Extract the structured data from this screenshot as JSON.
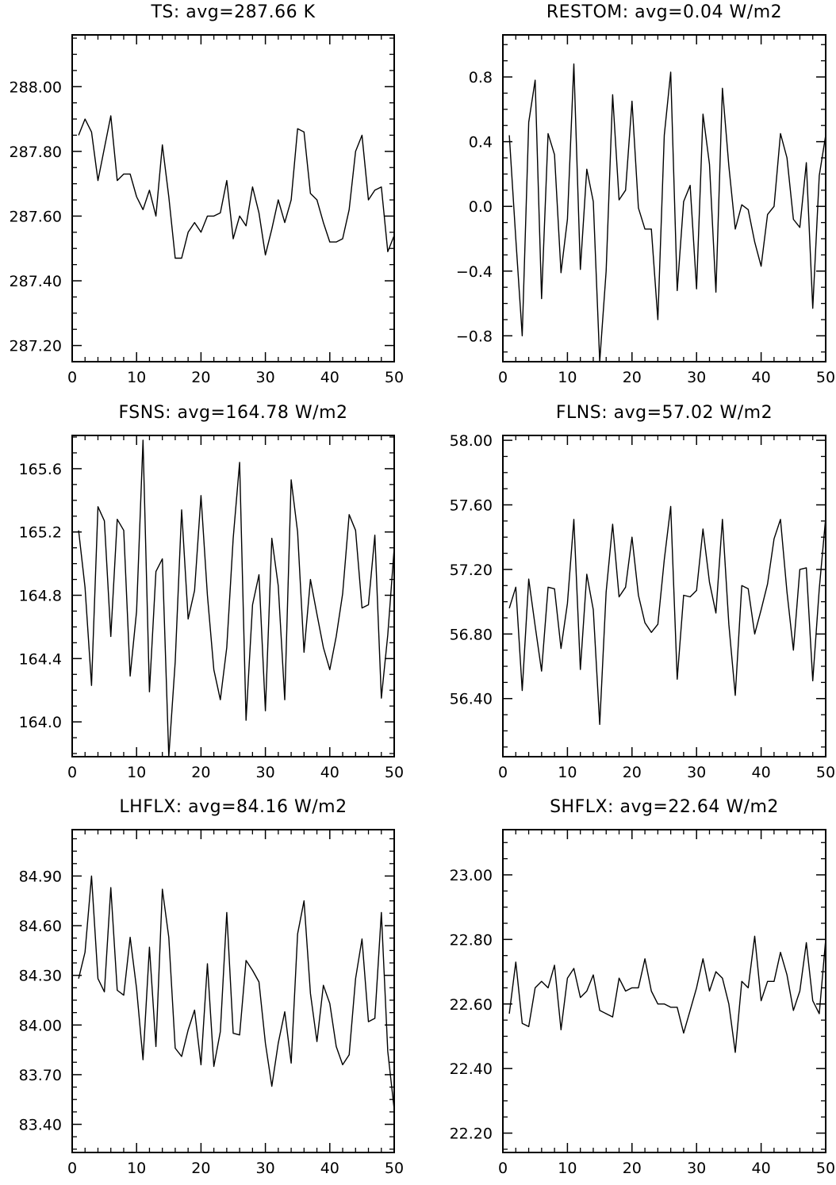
{
  "chart_data": [
    {
      "type": "line",
      "title": "TS: avg=287.66 K",
      "xlabel": "",
      "ylabel": "",
      "xlim": [
        0,
        50
      ],
      "ylim": [
        287.15,
        288.16
      ],
      "xticks": [
        0,
        10,
        20,
        30,
        40,
        50
      ],
      "xtick_labels": [
        "0",
        "10",
        "20",
        "30",
        "40",
        "50"
      ],
      "yticks": [
        287.2,
        287.4,
        287.6,
        287.8,
        288.0
      ],
      "ytick_labels": [
        "287.20",
        "287.40",
        "287.60",
        "287.80",
        "288.00"
      ],
      "x": [
        1,
        2,
        3,
        4,
        5,
        6,
        7,
        8,
        9,
        10,
        11,
        12,
        13,
        14,
        15,
        16,
        17,
        18,
        19,
        20,
        21,
        22,
        23,
        24,
        25,
        26,
        27,
        28,
        29,
        30,
        31,
        32,
        33,
        34,
        35,
        36,
        37,
        38,
        39,
        40,
        41,
        42,
        43,
        44,
        45,
        46,
        47,
        48,
        49,
        50
      ],
      "values": [
        287.85,
        287.9,
        287.86,
        287.71,
        287.81,
        287.91,
        287.71,
        287.73,
        287.73,
        287.66,
        287.62,
        287.68,
        287.6,
        287.82,
        287.66,
        287.47,
        287.47,
        287.55,
        287.58,
        287.55,
        287.6,
        287.6,
        287.61,
        287.71,
        287.53,
        287.6,
        287.57,
        287.69,
        287.61,
        287.48,
        287.56,
        287.65,
        287.58,
        287.65,
        287.87,
        287.86,
        287.67,
        287.65,
        287.58,
        287.52,
        287.52,
        287.53,
        287.62,
        287.8,
        287.85,
        287.65,
        287.68,
        287.69,
        287.49,
        287.54
      ]
    },
    {
      "type": "line",
      "title": "RESTOM: avg=0.04 W/m2",
      "xlabel": "",
      "ylabel": "",
      "xlim": [
        0,
        50
      ],
      "ylim": [
        -0.96,
        1.06
      ],
      "xticks": [
        0,
        10,
        20,
        30,
        40,
        50
      ],
      "xtick_labels": [
        "0",
        "10",
        "20",
        "30",
        "40",
        "50"
      ],
      "yticks": [
        -0.8,
        -0.4,
        0.0,
        0.4,
        0.8
      ],
      "ytick_labels": [
        "−0.8",
        "−0.4",
        "0.0",
        "0.4",
        "0.8"
      ],
      "x": [
        1,
        2,
        3,
        4,
        5,
        6,
        7,
        8,
        9,
        10,
        11,
        12,
        13,
        14,
        15,
        16,
        17,
        18,
        19,
        20,
        21,
        22,
        23,
        24,
        25,
        26,
        27,
        28,
        29,
        30,
        31,
        32,
        33,
        34,
        35,
        36,
        37,
        38,
        39,
        40,
        41,
        42,
        43,
        44,
        45,
        46,
        47,
        48,
        49,
        50
      ],
      "values": [
        0.44,
        -0.2,
        -0.8,
        0.52,
        0.78,
        -0.57,
        0.45,
        0.32,
        -0.41,
        -0.08,
        0.88,
        -0.39,
        0.23,
        0.03,
        -0.96,
        -0.4,
        0.69,
        0.04,
        0.1,
        0.65,
        -0.01,
        -0.14,
        -0.14,
        -0.7,
        0.44,
        0.83,
        -0.52,
        0.03,
        0.13,
        -0.51,
        0.57,
        0.26,
        -0.53,
        0.73,
        0.25,
        -0.14,
        0.01,
        -0.02,
        -0.22,
        -0.37,
        -0.05,
        0.0,
        0.45,
        0.3,
        -0.08,
        -0.13,
        0.27,
        -0.63,
        0.19,
        0.44
      ]
    },
    {
      "type": "line",
      "title": "FSNS: avg=164.78 W/m2",
      "xlabel": "",
      "ylabel": "",
      "xlim": [
        0,
        50
      ],
      "ylim": [
        163.78,
        165.81
      ],
      "xticks": [
        0,
        10,
        20,
        30,
        40,
        50
      ],
      "xtick_labels": [
        "0",
        "10",
        "20",
        "30",
        "40",
        "50"
      ],
      "yticks": [
        164.0,
        164.4,
        164.8,
        165.2,
        165.6
      ],
      "ytick_labels": [
        "164.0",
        "164.4",
        "164.8",
        "165.2",
        "165.6"
      ],
      "x": [
        1,
        2,
        3,
        4,
        5,
        6,
        7,
        8,
        9,
        10,
        11,
        12,
        13,
        14,
        15,
        16,
        17,
        18,
        19,
        20,
        21,
        22,
        23,
        24,
        25,
        26,
        27,
        28,
        29,
        30,
        31,
        32,
        33,
        34,
        35,
        36,
        37,
        38,
        39,
        40,
        41,
        42,
        43,
        44,
        45,
        46,
        47,
        48,
        49,
        50
      ],
      "values": [
        165.21,
        164.85,
        164.23,
        165.36,
        165.27,
        164.54,
        165.28,
        165.21,
        164.29,
        164.7,
        165.78,
        164.19,
        164.95,
        165.03,
        163.78,
        164.38,
        165.34,
        164.65,
        164.83,
        165.43,
        164.8,
        164.33,
        164.14,
        164.47,
        165.16,
        165.64,
        164.01,
        164.74,
        164.93,
        164.07,
        165.16,
        164.86,
        164.14,
        165.53,
        165.2,
        164.44,
        164.9,
        164.68,
        164.47,
        164.33,
        164.54,
        164.81,
        165.31,
        165.21,
        164.72,
        164.74,
        165.18,
        164.15,
        164.55,
        165.1
      ]
    },
    {
      "type": "line",
      "title": "FLNS: avg=57.02 W/m2",
      "xlabel": "",
      "ylabel": "",
      "xlim": [
        0,
        50
      ],
      "ylim": [
        56.04,
        58.03
      ],
      "xticks": [
        0,
        10,
        20,
        30,
        40,
        50
      ],
      "xtick_labels": [
        "0",
        "10",
        "20",
        "30",
        "40",
        "50"
      ],
      "yticks": [
        56.4,
        56.8,
        57.2,
        57.6,
        58.0
      ],
      "ytick_labels": [
        "56.40",
        "56.80",
        "57.20",
        "57.60",
        "58.00"
      ],
      "x": [
        1,
        2,
        3,
        4,
        5,
        6,
        7,
        8,
        9,
        10,
        11,
        12,
        13,
        14,
        15,
        16,
        17,
        18,
        19,
        20,
        21,
        22,
        23,
        24,
        25,
        26,
        27,
        28,
        29,
        30,
        31,
        32,
        33,
        34,
        35,
        36,
        37,
        38,
        39,
        40,
        41,
        42,
        43,
        44,
        45,
        46,
        47,
        48,
        49,
        50
      ],
      "values": [
        56.96,
        57.09,
        56.45,
        57.14,
        56.85,
        56.57,
        57.09,
        57.08,
        56.71,
        56.99,
        57.51,
        56.58,
        57.17,
        56.95,
        56.24,
        57.06,
        57.48,
        57.03,
        57.09,
        57.4,
        57.04,
        56.87,
        56.81,
        56.86,
        57.26,
        57.59,
        56.52,
        57.04,
        57.03,
        57.07,
        57.45,
        57.12,
        56.93,
        57.51,
        56.86,
        56.42,
        57.1,
        57.08,
        56.8,
        56.95,
        57.11,
        57.39,
        57.51,
        57.06,
        56.7,
        57.2,
        57.21,
        56.51,
        57.08,
        57.52
      ]
    },
    {
      "type": "line",
      "title": "LHFLX: avg=84.16 W/m2",
      "xlabel": "",
      "ylabel": "",
      "xlim": [
        0,
        50
      ],
      "ylim": [
        83.23,
        85.18
      ],
      "xticks": [
        0,
        10,
        20,
        30,
        40,
        50
      ],
      "xtick_labels": [
        "0",
        "10",
        "20",
        "30",
        "40",
        "50"
      ],
      "yticks": [
        83.4,
        83.7,
        84.0,
        84.3,
        84.6,
        84.9
      ],
      "ytick_labels": [
        "83.40",
        "83.70",
        "84.00",
        "84.30",
        "84.60",
        "84.90"
      ],
      "x": [
        1,
        2,
        3,
        4,
        5,
        6,
        7,
        8,
        9,
        10,
        11,
        12,
        13,
        14,
        15,
        16,
        17,
        18,
        19,
        20,
        21,
        22,
        23,
        24,
        25,
        26,
        27,
        28,
        29,
        30,
        31,
        32,
        33,
        34,
        35,
        36,
        37,
        38,
        39,
        40,
        41,
        42,
        43,
        44,
        45,
        46,
        47,
        48,
        49,
        50
      ],
      "values": [
        84.28,
        84.44,
        84.9,
        84.28,
        84.2,
        84.83,
        84.21,
        84.18,
        84.53,
        84.22,
        83.79,
        84.47,
        83.87,
        84.82,
        84.53,
        83.86,
        83.81,
        83.97,
        84.09,
        83.76,
        84.37,
        83.75,
        83.96,
        84.68,
        83.95,
        83.94,
        84.39,
        84.33,
        84.26,
        83.89,
        83.63,
        83.89,
        84.08,
        83.77,
        84.55,
        84.75,
        84.19,
        83.9,
        84.24,
        84.13,
        83.87,
        83.76,
        83.82,
        84.28,
        84.52,
        84.02,
        84.04,
        84.68,
        83.84,
        83.49
      ]
    },
    {
      "type": "line",
      "title": "SHFLX: avg=22.64 W/m2",
      "xlabel": "",
      "ylabel": "",
      "xlim": [
        0,
        50
      ],
      "ylim": [
        22.14,
        23.14
      ],
      "xticks": [
        0,
        10,
        20,
        30,
        40,
        50
      ],
      "xtick_labels": [
        "0",
        "10",
        "20",
        "30",
        "40",
        "50"
      ],
      "yticks": [
        22.2,
        22.4,
        22.6,
        22.8,
        23.0
      ],
      "ytick_labels": [
        "22.20",
        "22.40",
        "22.60",
        "22.80",
        "23.00"
      ],
      "x": [
        1,
        2,
        3,
        4,
        5,
        6,
        7,
        8,
        9,
        10,
        11,
        12,
        13,
        14,
        15,
        16,
        17,
        18,
        19,
        20,
        21,
        22,
        23,
        24,
        25,
        26,
        27,
        28,
        29,
        30,
        31,
        32,
        33,
        34,
        35,
        36,
        37,
        38,
        39,
        40,
        41,
        42,
        43,
        44,
        45,
        46,
        47,
        48,
        49,
        50
      ],
      "values": [
        22.57,
        22.73,
        22.54,
        22.53,
        22.65,
        22.67,
        22.65,
        22.72,
        22.52,
        22.68,
        22.71,
        22.62,
        22.64,
        22.69,
        22.58,
        22.57,
        22.56,
        22.68,
        22.64,
        22.65,
        22.65,
        22.74,
        22.64,
        22.6,
        22.6,
        22.59,
        22.59,
        22.51,
        22.58,
        22.65,
        22.74,
        22.64,
        22.7,
        22.68,
        22.6,
        22.45,
        22.67,
        22.65,
        22.81,
        22.61,
        22.67,
        22.67,
        22.76,
        22.69,
        22.58,
        22.64,
        22.79,
        22.61,
        22.57,
        22.8
      ]
    }
  ]
}
